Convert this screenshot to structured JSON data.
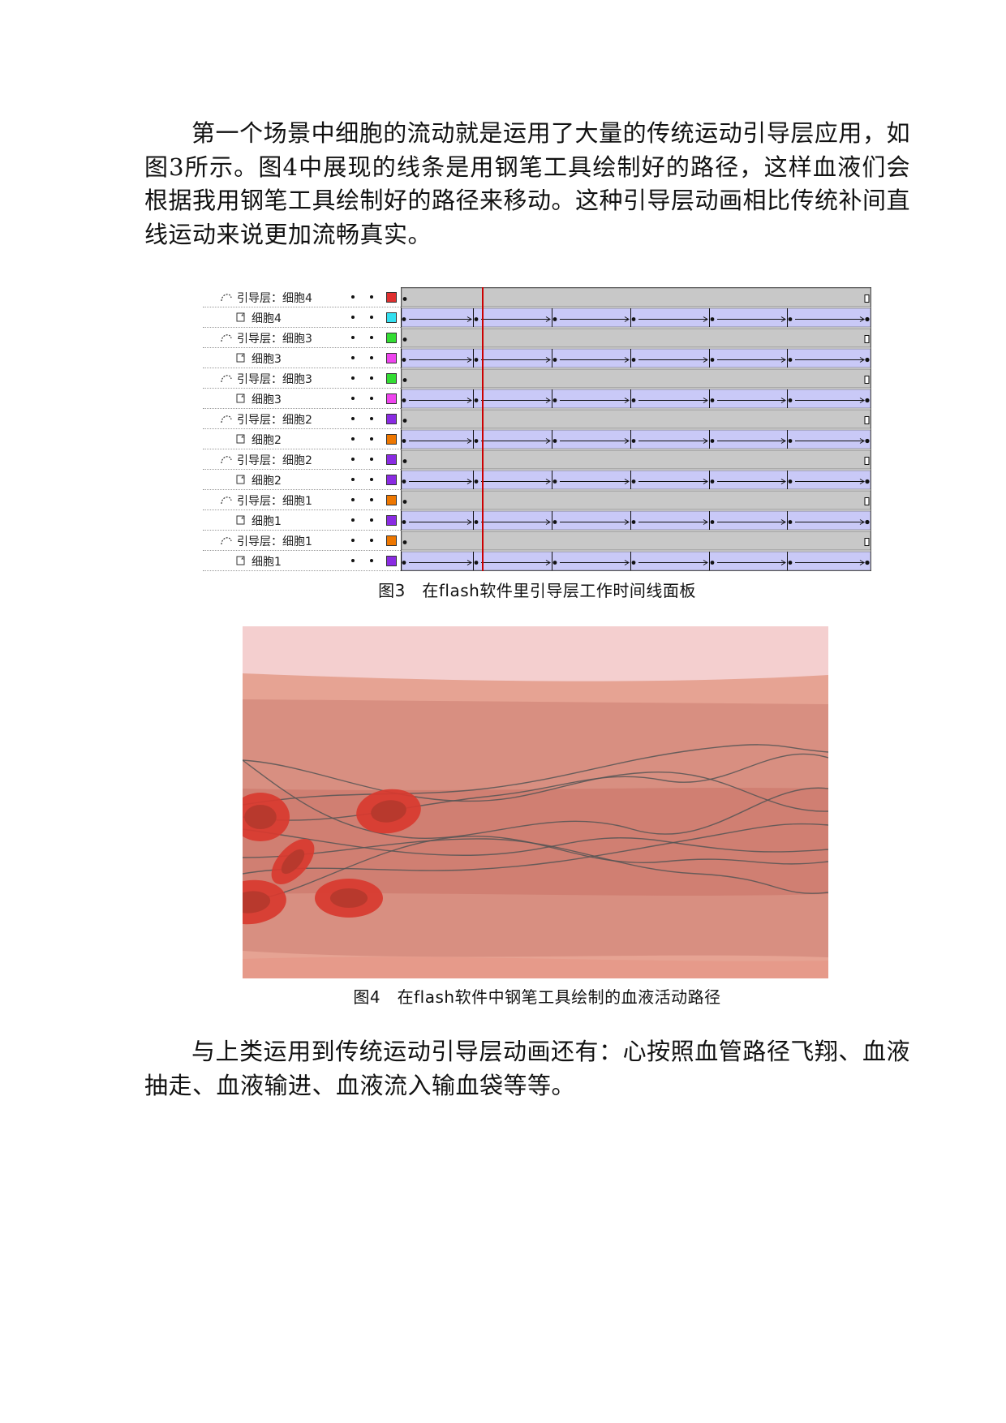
{
  "paragraphs": {
    "intro": "第一个场景中细胞的流动就是运用了大量的传统运动引导层应用，如图3所示。图4中展现的线条是用钢笔工具绘制好的路径，这样血液们会根据我用钢笔工具绘制好的路径来移动。这种引导层动画相比传统补间直线运动来说更加流畅真实。",
    "outro": "与上类运用到传统运动引导层动画还有：心按照血管路径飞翔、血液抽走、血液输进、血液流入输血袋等等。"
  },
  "figure3": {
    "caption": "图3　在flash软件里引导层工作时间线面板",
    "layers": [
      {
        "name": "引导层：细胞4",
        "type": "guide",
        "color": "#e03030"
      },
      {
        "name": "细胞4",
        "type": "guided",
        "color": "#33e0f0"
      },
      {
        "name": "引导层：细胞3",
        "type": "guide",
        "color": "#33dd33"
      },
      {
        "name": "细胞3",
        "type": "guided",
        "color": "#ee44ee"
      },
      {
        "name": "引导层：细胞3",
        "type": "guide",
        "color": "#33dd33"
      },
      {
        "name": "细胞3",
        "type": "guided",
        "color": "#ee44ee"
      },
      {
        "name": "引导层：细胞2",
        "type": "guide",
        "color": "#8a2be2"
      },
      {
        "name": "细胞2",
        "type": "guided",
        "color": "#ee7700"
      },
      {
        "name": "引导层：细胞2",
        "type": "guide",
        "color": "#8a2be2"
      },
      {
        "name": "细胞2",
        "type": "guided",
        "color": "#8a2be2"
      },
      {
        "name": "引导层：细胞1",
        "type": "guide",
        "color": "#ee7700"
      },
      {
        "name": "细胞1",
        "type": "guided",
        "color": "#8a2be2"
      },
      {
        "name": "引导层：细胞1",
        "type": "guide",
        "color": "#ee7700"
      },
      {
        "name": "细胞1",
        "type": "guided",
        "color": "#8a2be2"
      }
    ],
    "colors": {
      "guide_track": "#c8c8c8",
      "tween_fill": "#c9c9f7",
      "playhead": "#cc0000"
    }
  },
  "figure4": {
    "caption": "图4　在flash软件中钢笔工具绘制的血液活动路径",
    "colors": {
      "top_band": "#f4cfcf",
      "vessel_wall": "#e6a393",
      "vessel_mid": "#d88f81",
      "vessel_core": "#d07f72",
      "cell": "#d83a2f",
      "cell_center": "#b5382c",
      "path_line": "#555555"
    }
  }
}
